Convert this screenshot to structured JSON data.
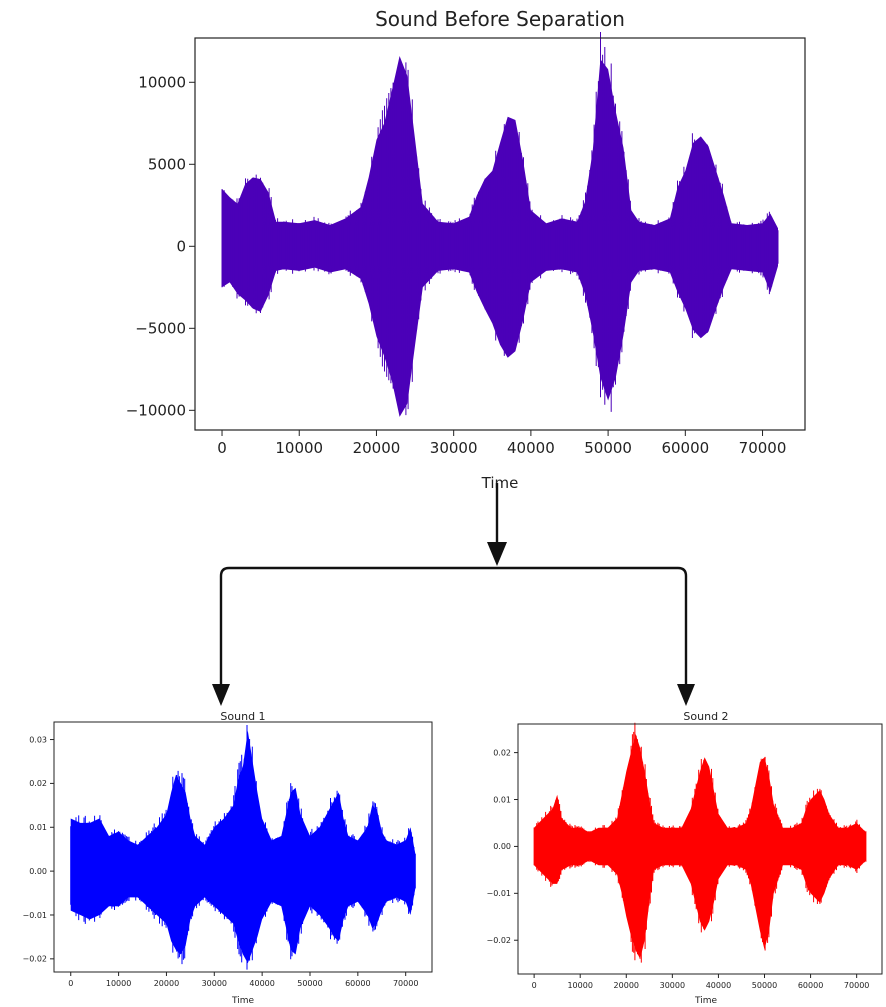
{
  "colors": {
    "main_wave": "#4b00b8",
    "sound1_wave": "#0000ff",
    "sound2_wave": "#ff0000",
    "arrow": "#111111",
    "axes": "#222222"
  },
  "chart_data": [
    {
      "id": "main",
      "type": "line",
      "title": "Sound Before Separation",
      "xlabel": "Time",
      "ylabel": "",
      "xlim": [
        -3500,
        75500
      ],
      "ylim": [
        -11200,
        12700
      ],
      "xticks": [
        0,
        10000,
        20000,
        30000,
        40000,
        50000,
        60000,
        70000
      ],
      "xtick_labels": [
        "0",
        "10000",
        "20000",
        "30000",
        "40000",
        "50000",
        "60000",
        "70000"
      ],
      "yticks": [
        -10000,
        -5000,
        0,
        5000,
        10000
      ],
      "ytick_labels": [
        "−10000",
        "−5000",
        "0",
        "5000",
        "10000"
      ],
      "grid": false,
      "series": [
        {
          "x": [
            0,
            1000,
            2000,
            3000,
            4000,
            5000,
            6000,
            7000,
            8000,
            10000,
            12000,
            14000,
            16000,
            18000,
            19000,
            20000,
            21000,
            22000,
            23000,
            24000,
            25000,
            26000,
            28000,
            30000,
            32000,
            33000,
            34000,
            35000,
            36000,
            37000,
            38000,
            39000,
            40000,
            42000,
            44000,
            46000,
            47000,
            48000,
            49000,
            50000,
            51000,
            52000,
            53000,
            54000,
            56000,
            58000,
            59000,
            60000,
            61000,
            62000,
            63000,
            64000,
            65000,
            66000,
            68000,
            70000,
            71000,
            72000
          ],
          "upper": [
            3500,
            3000,
            2600,
            3800,
            4200,
            4100,
            3300,
            1500,
            1500,
            1400,
            1600,
            1300,
            1700,
            2400,
            4200,
            6500,
            7500,
            9500,
            11600,
            10400,
            6500,
            2600,
            1500,
            1400,
            1800,
            3100,
            4100,
            4600,
            6300,
            7900,
            7700,
            5200,
            2200,
            1400,
            1700,
            1500,
            2700,
            5800,
            11400,
            10800,
            8200,
            6000,
            2200,
            1500,
            1300,
            1700,
            3600,
            4600,
            6300,
            6700,
            6100,
            4600,
            3100,
            1400,
            1300,
            1400,
            2000,
            1100
          ],
          "lower": [
            -2500,
            -2200,
            -2900,
            -3300,
            -3800,
            -4000,
            -3000,
            -1500,
            -1400,
            -1500,
            -1300,
            -1600,
            -1400,
            -2000,
            -3500,
            -5500,
            -6700,
            -8200,
            -10400,
            -9600,
            -6000,
            -2500,
            -1500,
            -1400,
            -1600,
            -2800,
            -3800,
            -4700,
            -6000,
            -6800,
            -6400,
            -4500,
            -2200,
            -1500,
            -1400,
            -1600,
            -2900,
            -5200,
            -8000,
            -9400,
            -8000,
            -5400,
            -2200,
            -1500,
            -1400,
            -1600,
            -2800,
            -3800,
            -5100,
            -5600,
            -5200,
            -3800,
            -2500,
            -1400,
            -1500,
            -1600,
            -2800,
            -1200
          ]
        }
      ]
    },
    {
      "id": "sound1",
      "type": "line",
      "title": "Sound 1",
      "xlabel": "Time",
      "ylabel": "",
      "xlim": [
        -3500,
        75500
      ],
      "ylim": [
        -0.023,
        0.034
      ],
      "xticks": [
        0,
        10000,
        20000,
        30000,
        40000,
        50000,
        60000,
        70000
      ],
      "xtick_labels": [
        "0",
        "10000",
        "20000",
        "30000",
        "40000",
        "50000",
        "60000",
        "70000"
      ],
      "yticks": [
        -0.02,
        -0.01,
        0.0,
        0.01,
        0.02,
        0.03
      ],
      "ytick_labels": [
        "−0.02",
        "−0.01",
        "0.00",
        "0.01",
        "0.02",
        "0.03"
      ],
      "grid": false,
      "series": [
        {
          "x": [
            0,
            2000,
            4000,
            6000,
            8000,
            10000,
            12000,
            14000,
            16000,
            18000,
            20000,
            21000,
            22000,
            23000,
            24000,
            25000,
            26000,
            28000,
            30000,
            32000,
            34000,
            35000,
            36000,
            37000,
            38000,
            39000,
            40000,
            42000,
            44000,
            45000,
            46000,
            47000,
            48000,
            50000,
            52000,
            54000,
            55000,
            56000,
            57000,
            58000,
            60000,
            62000,
            63000,
            64000,
            65000,
            66000,
            68000,
            70000,
            71000,
            72000
          ],
          "upper": [
            0.012,
            0.011,
            0.011,
            0.012,
            0.008,
            0.009,
            0.007,
            0.006,
            0.008,
            0.01,
            0.013,
            0.018,
            0.022,
            0.02,
            0.018,
            0.012,
            0.008,
            0.006,
            0.01,
            0.012,
            0.015,
            0.021,
            0.024,
            0.032,
            0.025,
            0.018,
            0.012,
            0.007,
            0.008,
            0.013,
            0.018,
            0.019,
            0.013,
            0.008,
            0.01,
            0.014,
            0.016,
            0.018,
            0.012,
            0.008,
            0.007,
            0.01,
            0.015,
            0.014,
            0.009,
            0.007,
            0.006,
            0.007,
            0.01,
            0.004
          ],
          "lower": [
            -0.009,
            -0.01,
            -0.011,
            -0.01,
            -0.008,
            -0.008,
            -0.006,
            -0.006,
            -0.008,
            -0.01,
            -0.012,
            -0.016,
            -0.018,
            -0.019,
            -0.017,
            -0.011,
            -0.008,
            -0.006,
            -0.008,
            -0.01,
            -0.012,
            -0.016,
            -0.019,
            -0.021,
            -0.018,
            -0.015,
            -0.011,
            -0.007,
            -0.008,
            -0.013,
            -0.018,
            -0.019,
            -0.013,
            -0.008,
            -0.01,
            -0.013,
            -0.015,
            -0.016,
            -0.011,
            -0.008,
            -0.007,
            -0.01,
            -0.013,
            -0.012,
            -0.009,
            -0.007,
            -0.006,
            -0.007,
            -0.01,
            -0.004
          ]
        }
      ]
    },
    {
      "id": "sound2",
      "type": "line",
      "title": "Sound 2",
      "xlabel": "Time",
      "ylabel": "",
      "xlim": [
        -3500,
        75500
      ],
      "ylim": [
        -0.0272,
        0.0261
      ],
      "xticks": [
        0,
        10000,
        20000,
        30000,
        40000,
        50000,
        60000,
        70000
      ],
      "xtick_labels": [
        "0",
        "10000",
        "20000",
        "30000",
        "40000",
        "50000",
        "60000",
        "70000"
      ],
      "yticks": [
        -0.02,
        -0.01,
        0.0,
        0.01,
        0.02
      ],
      "ytick_labels": [
        "−0.02",
        "−0.01",
        "0.00",
        "0.01",
        "0.02"
      ],
      "grid": false,
      "series": [
        {
          "x": [
            0,
            2000,
            4000,
            5000,
            6000,
            8000,
            10000,
            12000,
            14000,
            16000,
            18000,
            19000,
            20000,
            21000,
            22000,
            23000,
            24000,
            25000,
            26000,
            28000,
            30000,
            32000,
            34000,
            35000,
            36000,
            37000,
            38000,
            39000,
            40000,
            42000,
            44000,
            46000,
            47000,
            48000,
            49000,
            50000,
            51000,
            52000,
            54000,
            56000,
            58000,
            59000,
            60000,
            61000,
            62000,
            63000,
            64000,
            66000,
            68000,
            70000,
            72000
          ],
          "upper": [
            0.004,
            0.006,
            0.008,
            0.011,
            0.006,
            0.004,
            0.004,
            0.003,
            0.004,
            0.004,
            0.006,
            0.011,
            0.016,
            0.02,
            0.024,
            0.021,
            0.016,
            0.01,
            0.005,
            0.004,
            0.004,
            0.004,
            0.008,
            0.012,
            0.016,
            0.019,
            0.017,
            0.012,
            0.007,
            0.004,
            0.004,
            0.005,
            0.008,
            0.013,
            0.018,
            0.019,
            0.015,
            0.009,
            0.004,
            0.004,
            0.005,
            0.008,
            0.01,
            0.011,
            0.012,
            0.01,
            0.007,
            0.004,
            0.004,
            0.005,
            0.003
          ],
          "lower": [
            -0.004,
            -0.006,
            -0.008,
            -0.008,
            -0.005,
            -0.004,
            -0.004,
            -0.003,
            -0.004,
            -0.004,
            -0.006,
            -0.01,
            -0.015,
            -0.019,
            -0.022,
            -0.024,
            -0.02,
            -0.012,
            -0.005,
            -0.004,
            -0.004,
            -0.004,
            -0.008,
            -0.012,
            -0.016,
            -0.018,
            -0.016,
            -0.012,
            -0.007,
            -0.004,
            -0.004,
            -0.005,
            -0.008,
            -0.013,
            -0.018,
            -0.022,
            -0.018,
            -0.01,
            -0.004,
            -0.004,
            -0.005,
            -0.008,
            -0.01,
            -0.011,
            -0.012,
            -0.01,
            -0.007,
            -0.004,
            -0.004,
            -0.005,
            -0.003
          ]
        }
      ]
    }
  ]
}
